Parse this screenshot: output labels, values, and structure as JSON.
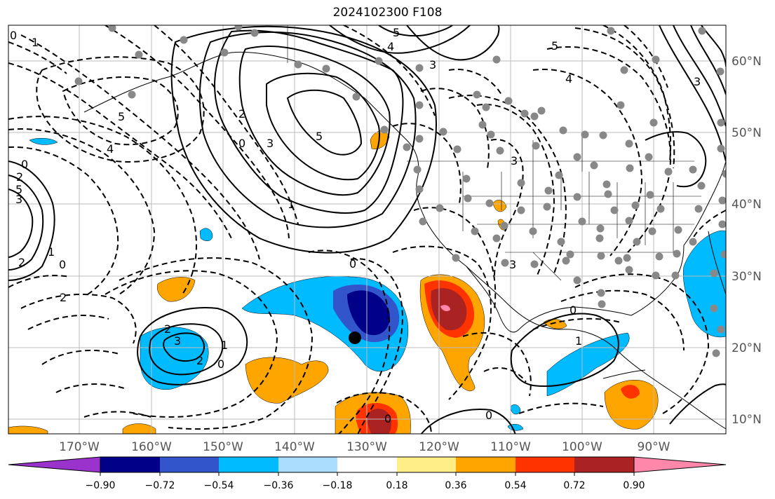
{
  "title": "2024102300 F108",
  "longitude_labels": [
    "170°W",
    "160°W",
    "150°W",
    "140°W",
    "130°W",
    "120°W",
    "110°W",
    "100°W",
    "90°W"
  ],
  "latitude_labels": [
    "60°N",
    "50°N",
    "40°N",
    "30°N",
    "20°N",
    "10°N"
  ],
  "colorbar": {
    "tick_labels": [
      "−0.90",
      "−0.72",
      "−0.54",
      "−0.36",
      "−0.18",
      "0.18",
      "0.36",
      "0.54",
      "0.72",
      "0.90"
    ],
    "colors": [
      "#9933cc",
      "#000088",
      "#3355cc",
      "#00bbff",
      "#aaddff",
      "#ffffff",
      "#ffee88",
      "#ffa500",
      "#ff3300",
      "#aa2222",
      "#ff88aa"
    ]
  },
  "contour_labels": [
    "0",
    "1",
    "5",
    "4",
    "5",
    "3",
    "3",
    "2",
    "0",
    "5",
    "4",
    "3",
    "2",
    "0",
    "1",
    "0",
    "5",
    "3",
    "2",
    "2",
    "3",
    "0",
    "2",
    "1",
    "2",
    "0",
    "3",
    "0",
    "1",
    "0",
    "0",
    "1",
    "5",
    "4",
    "3"
  ],
  "colors": {
    "axis": "#555555",
    "grid": "#bbbbbb",
    "station": "#888888"
  }
}
